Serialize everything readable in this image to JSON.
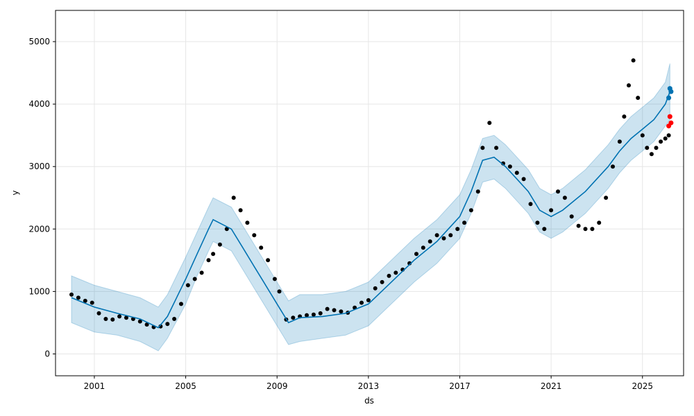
{
  "chart_data": {
    "type": "line",
    "title": "",
    "xlabel": "ds",
    "ylabel": "y",
    "xlim": [
      1999.3,
      2026.8
    ],
    "ylim": [
      -350,
      5500
    ],
    "grid": true,
    "x_ticks": [
      2001,
      2005,
      2009,
      2013,
      2017,
      2021,
      2025
    ],
    "x_tick_labels": [
      "2001",
      "2005",
      "2009",
      "2013",
      "2017",
      "2021",
      "2025"
    ],
    "y_ticks": [
      0,
      1000,
      2000,
      3000,
      4000,
      5000
    ],
    "y_tick_labels": [
      "0",
      "1000",
      "2000",
      "3000",
      "4000",
      "5000"
    ],
    "colors": {
      "observed": "#000000",
      "forecast": "#0072B2",
      "interval": "#0072B2",
      "test_actual": "#ff0000",
      "test_forecast": "#0072B2",
      "grid": "#e6e6e6"
    },
    "series": [
      {
        "kind": "observed",
        "x": [
          2000.0,
          2000.3,
          2000.6,
          2000.9,
          2001.2,
          2001.5,
          2001.8,
          2002.1,
          2002.4,
          2002.7,
          2003.0,
          2003.3,
          2003.6,
          2003.9,
          2004.2,
          2004.5,
          2004.8,
          2005.1,
          2005.4,
          2005.7,
          2006.0,
          2006.2,
          2006.5,
          2006.8,
          2007.1,
          2007.4,
          2007.7,
          2008.0,
          2008.3,
          2008.6,
          2008.9,
          2009.1,
          2009.4,
          2009.7,
          2010.0,
          2010.3,
          2010.6,
          2010.9,
          2011.2,
          2011.5,
          2011.8,
          2012.1,
          2012.4,
          2012.7,
          2013.0,
          2013.3,
          2013.6,
          2013.9,
          2014.2,
          2014.5,
          2014.8,
          2015.1,
          2015.4,
          2015.7,
          2016.0,
          2016.3,
          2016.6,
          2016.9,
          2017.2,
          2017.5,
          2017.8,
          2018.0,
          2018.3,
          2018.6,
          2018.9,
          2019.2,
          2019.5,
          2019.8,
          2020.1,
          2020.4,
          2020.7,
          2021.0,
          2021.3,
          2021.6,
          2021.9,
          2022.2,
          2022.5,
          2022.8,
          2023.1,
          2023.4,
          2023.7,
          2024.0,
          2024.2,
          2024.4,
          2024.6,
          2024.8,
          2025.0,
          2025.2,
          2025.4,
          2025.6,
          2025.8,
          2026.0,
          2026.15
        ],
        "y": [
          950,
          900,
          850,
          820,
          650,
          560,
          550,
          600,
          580,
          560,
          520,
          470,
          430,
          440,
          480,
          560,
          800,
          1100,
          1200,
          1300,
          1500,
          1600,
          1750,
          2000,
          2500,
          2300,
          2100,
          1900,
          1700,
          1500,
          1200,
          1000,
          550,
          580,
          600,
          620,
          630,
          650,
          720,
          700,
          680,
          660,
          740,
          820,
          860,
          1050,
          1150,
          1250,
          1300,
          1350,
          1450,
          1600,
          1700,
          1800,
          1900,
          1850,
          1900,
          2000,
          2100,
          2300,
          2600,
          3300,
          3700,
          3300,
          3050,
          3000,
          2900,
          2800,
          2400,
          2100,
          2000,
          2300,
          2600,
          2500,
          2200,
          2050,
          2000,
          2000,
          2100,
          2500,
          3000,
          3400,
          3800,
          4300,
          4700,
          4100,
          3500,
          3300,
          3200,
          3300,
          3400,
          3450,
          3500
        ]
      },
      {
        "kind": "forecast",
        "x": [
          2000.0,
          2001.0,
          2002.0,
          2003.0,
          2003.8,
          2004.2,
          2005.0,
          2005.5,
          2006.0,
          2006.2,
          2007.0,
          2007.5,
          2008.0,
          2008.5,
          2009.0,
          2009.5,
          2010.0,
          2011.0,
          2012.0,
          2013.0,
          2014.0,
          2015.0,
          2016.0,
          2016.5,
          2017.0,
          2017.5,
          2018.0,
          2018.5,
          2019.0,
          2019.5,
          2020.0,
          2020.5,
          2021.0,
          2021.5,
          2022.0,
          2022.5,
          2023.0,
          2023.5,
          2024.0,
          2024.5,
          2025.0,
          2025.5,
          2026.0,
          2026.2
        ],
        "y": [
          900,
          750,
          650,
          560,
          420,
          600,
          1200,
          1600,
          2000,
          2150,
          2000,
          1700,
          1400,
          1100,
          800,
          500,
          580,
          600,
          650,
          800,
          1150,
          1500,
          1800,
          2000,
          2200,
          2600,
          3100,
          3150,
          3000,
          2800,
          2600,
          2300,
          2200,
          2300,
          2450,
          2600,
          2800,
          3000,
          3250,
          3450,
          3600,
          3750,
          4000,
          4200
        ],
        "lower": [
          500,
          350,
          300,
          200,
          50,
          250,
          800,
          1250,
          1650,
          1800,
          1650,
          1350,
          1050,
          750,
          450,
          150,
          200,
          250,
          300,
          450,
          800,
          1150,
          1450,
          1650,
          1850,
          2250,
          2750,
          2800,
          2650,
          2450,
          2250,
          1950,
          1850,
          1950,
          2100,
          2250,
          2450,
          2650,
          2900,
          3100,
          3250,
          3400,
          3650,
          3750
        ],
        "upper": [
          1250,
          1100,
          1000,
          900,
          750,
          950,
          1550,
          1950,
          2350,
          2500,
          2350,
          2050,
          1750,
          1450,
          1150,
          850,
          950,
          950,
          1000,
          1150,
          1500,
          1850,
          2150,
          2350,
          2550,
          2950,
          3450,
          3500,
          3350,
          3150,
          2950,
          2650,
          2550,
          2650,
          2800,
          2950,
          3150,
          3350,
          3600,
          3800,
          3950,
          4100,
          4350,
          4650
        ]
      },
      {
        "kind": "test_actual",
        "x": [
          2026.15,
          2026.2,
          2026.25
        ],
        "y": [
          3650,
          3800,
          3700
        ]
      },
      {
        "kind": "test_forecast",
        "x": [
          2026.15,
          2026.2,
          2026.25
        ],
        "y": [
          4100,
          4250,
          4200
        ]
      }
    ]
  }
}
